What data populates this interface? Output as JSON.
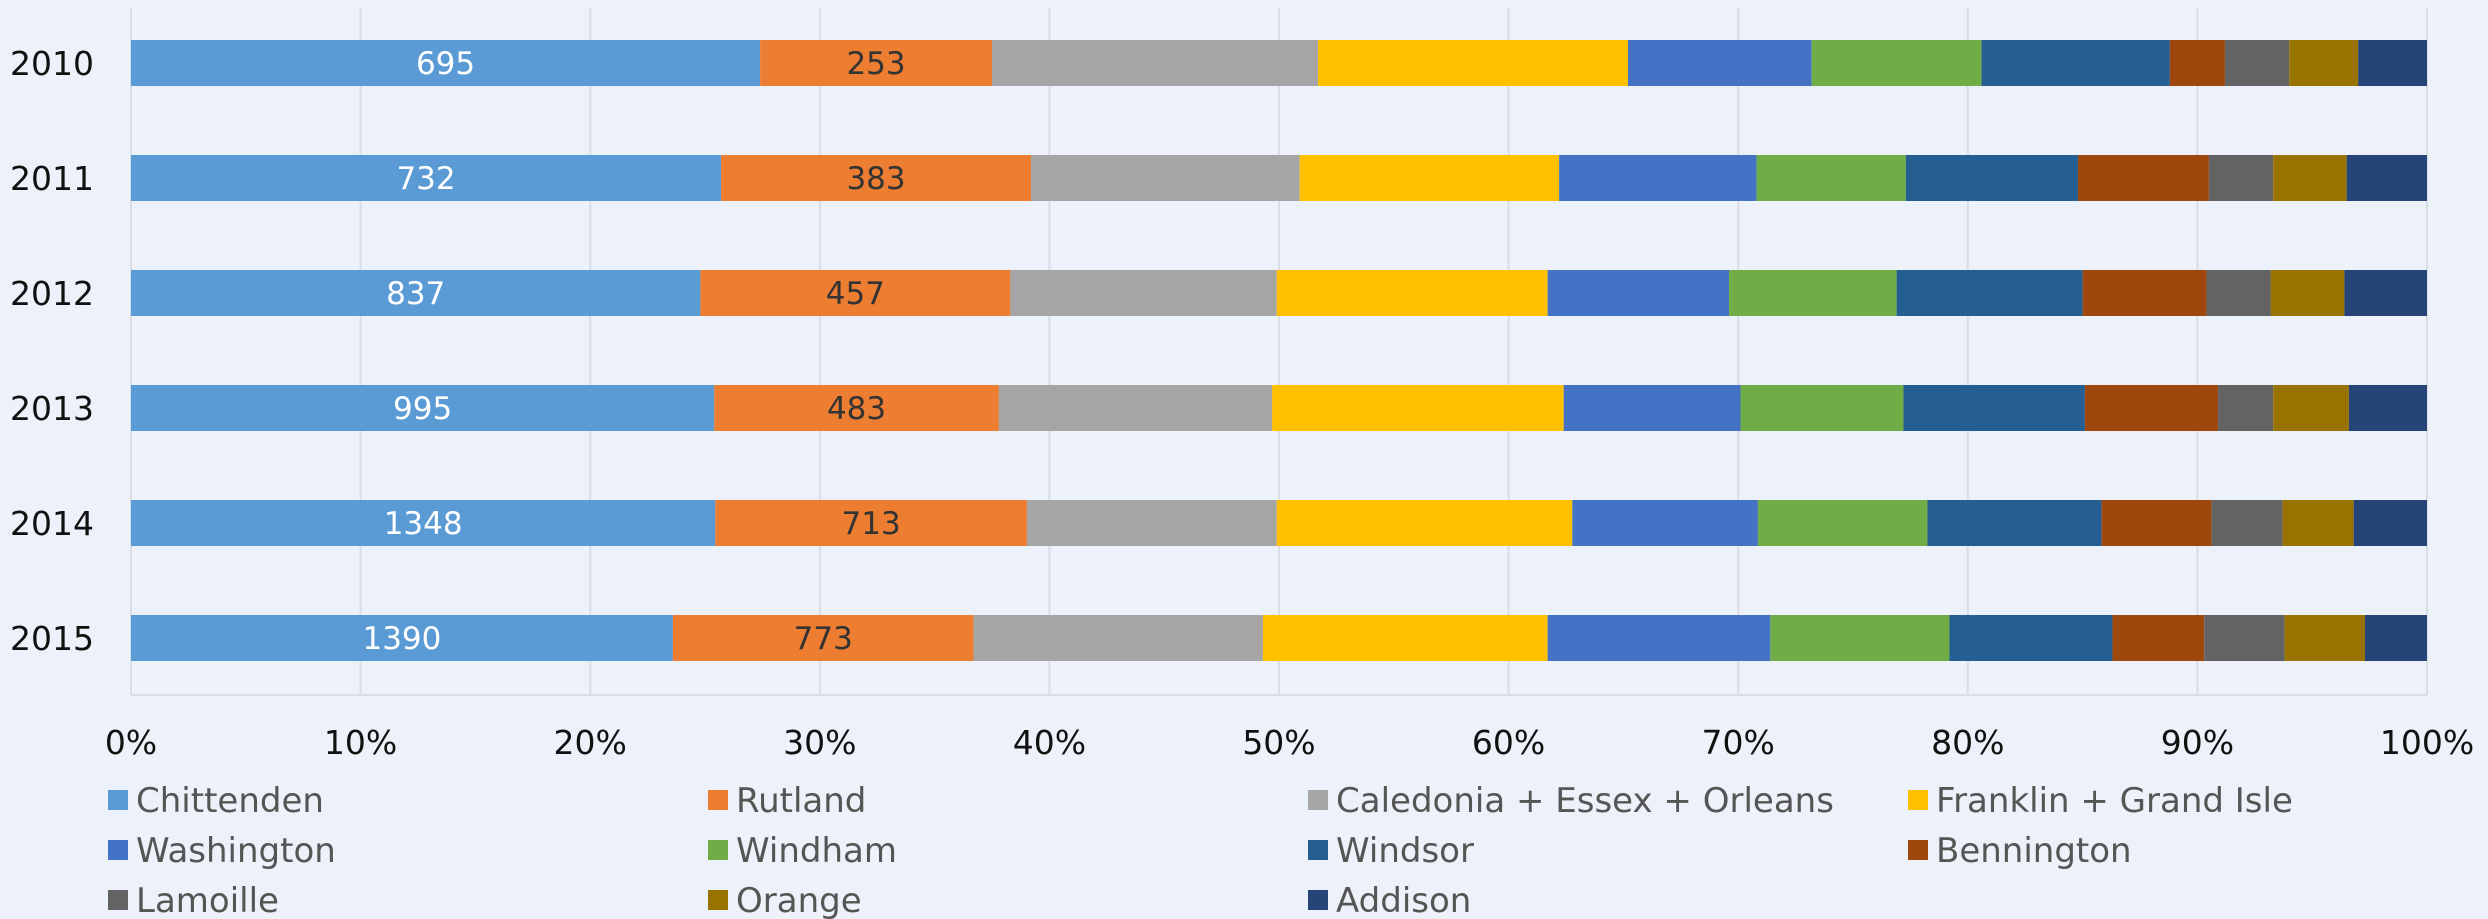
{
  "chart_data": {
    "type": "bar",
    "orientation": "horizontal",
    "stacked": "percent",
    "title": "",
    "xlabel": "",
    "ylabel": "",
    "xlim": [
      0,
      100
    ],
    "x_ticks": [
      "0%",
      "10%",
      "20%",
      "30%",
      "40%",
      "50%",
      "60%",
      "70%",
      "80%",
      "90%",
      "100%"
    ],
    "categories": [
      "2010",
      "2011",
      "2012",
      "2013",
      "2014",
      "2015"
    ],
    "grid": "vertical",
    "legend_position": "bottom",
    "series": [
      {
        "name": "Chittenden",
        "color": "#5b9bd5",
        "label_color": "#ffffff",
        "show_labels": true,
        "values": [
          27.4,
          25.7,
          24.8,
          25.4,
          25.5,
          23.6
        ],
        "labels": [
          "695",
          "732",
          "837",
          "995",
          "1348",
          "1390"
        ]
      },
      {
        "name": "Rutland",
        "color": "#ed7d31",
        "label_color": "#333333",
        "show_labels": true,
        "values": [
          10.1,
          13.5,
          13.5,
          12.4,
          13.6,
          13.1
        ],
        "labels": [
          "253",
          "383",
          "457",
          "483",
          "713",
          "773"
        ]
      },
      {
        "name": "Caledonia + Essex + Orleans",
        "color": "#a5a5a5",
        "values": [
          14.2,
          11.7,
          11.6,
          11.9,
          10.9,
          12.6
        ]
      },
      {
        "name": "Franklin + Grand Isle",
        "color": "#ffc000",
        "values": [
          13.5,
          11.3,
          11.8,
          12.7,
          12.9,
          12.4
        ]
      },
      {
        "name": "Washington",
        "color": "#4472c4",
        "values": [
          8.0,
          8.6,
          7.9,
          7.7,
          8.1,
          9.7
        ]
      },
      {
        "name": "Windham",
        "color": "#70ad47",
        "values": [
          7.4,
          6.5,
          7.3,
          7.1,
          7.4,
          7.8
        ]
      },
      {
        "name": "Windsor",
        "color": "#255e91",
        "values": [
          8.2,
          7.5,
          8.1,
          7.9,
          7.6,
          7.1
        ]
      },
      {
        "name": "Bennington",
        "color": "#9e480e",
        "values": [
          2.4,
          5.7,
          5.4,
          5.8,
          4.8,
          4.0
        ]
      },
      {
        "name": "Lamoille",
        "color": "#636363",
        "values": [
          2.8,
          2.8,
          2.8,
          2.4,
          3.1,
          3.5
        ]
      },
      {
        "name": "Orange",
        "color": "#997300",
        "values": [
          3.0,
          3.2,
          3.2,
          3.3,
          3.1,
          3.5
        ]
      },
      {
        "name": "Addison",
        "color": "#264478",
        "values": [
          3.0,
          3.5,
          3.6,
          3.4,
          3.2,
          2.7
        ]
      }
    ]
  }
}
